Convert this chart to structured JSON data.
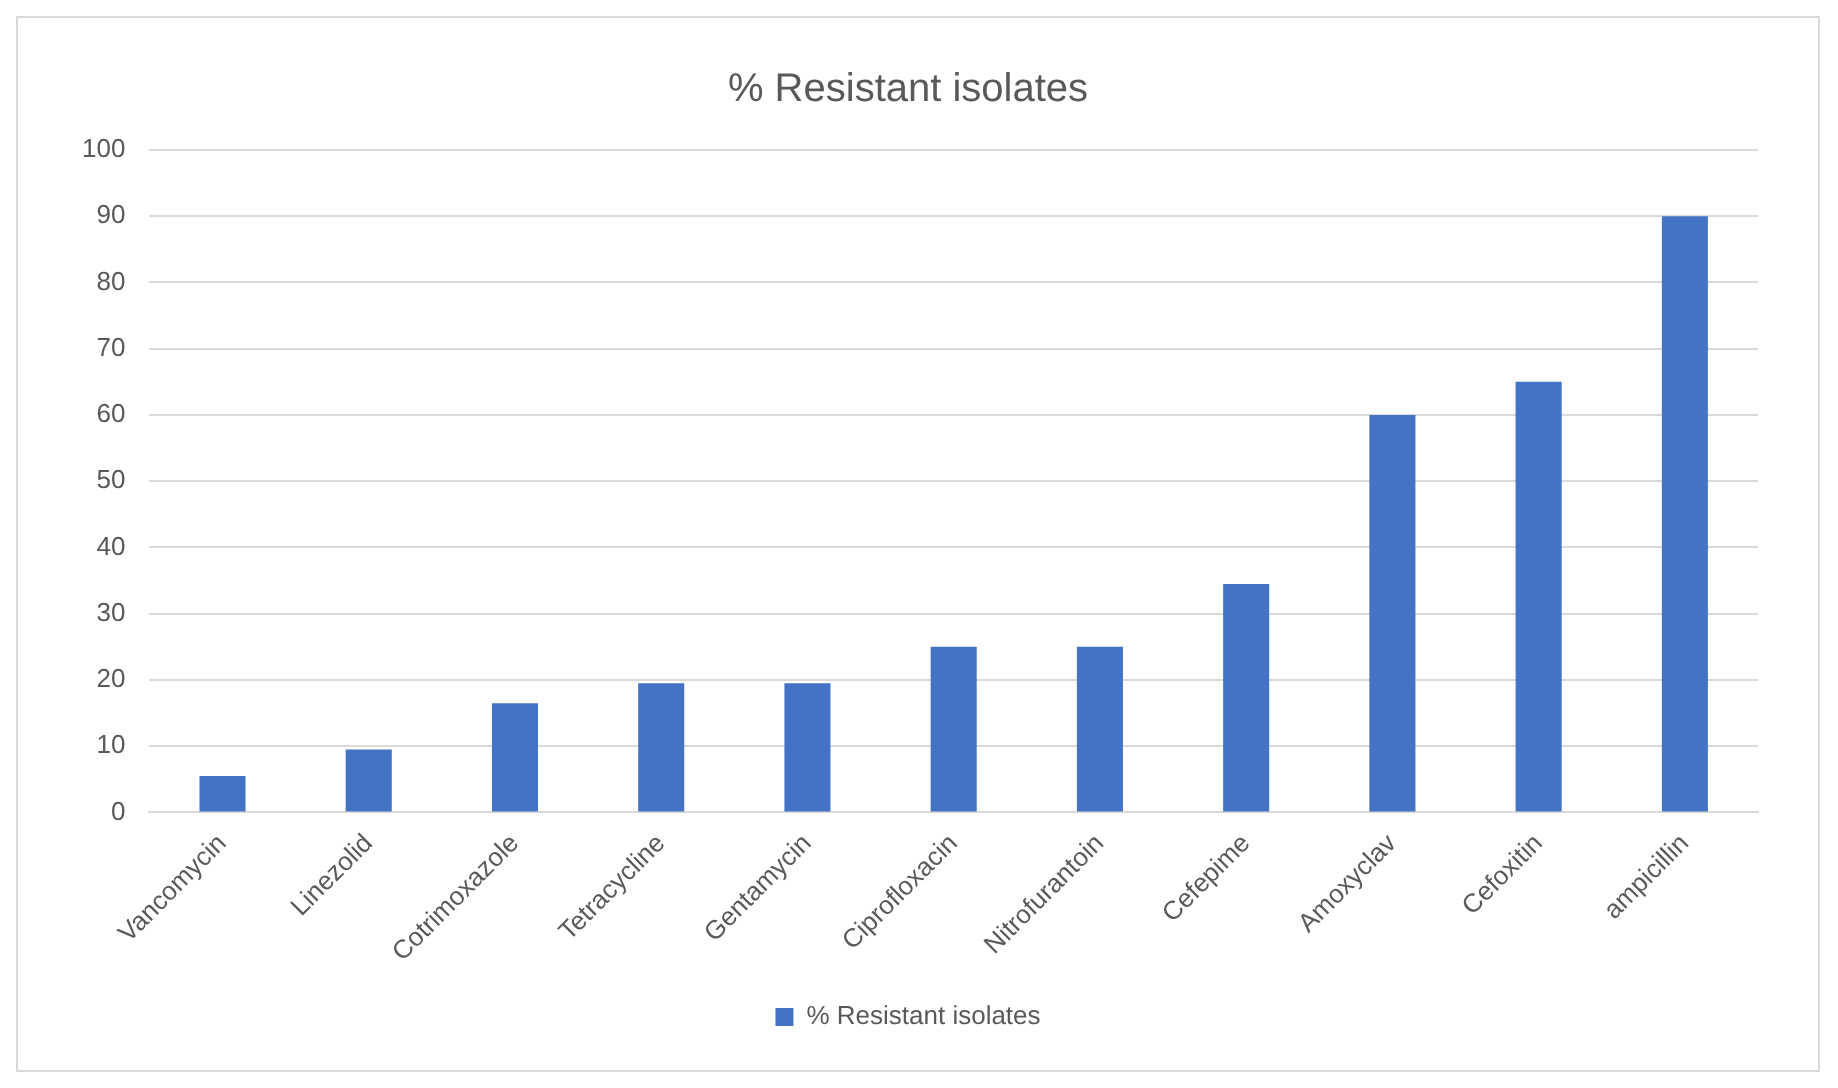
{
  "chart_data": {
    "type": "bar",
    "title": "% Resistant isolates",
    "categories": [
      "Vancomycin",
      "Linezolid",
      "Cotrimoxazole",
      "Tetracycline",
      "Gentamycin",
      "Ciprofloxacin",
      "Nitrofurantoin",
      "Cefepime",
      "Amoxyclav",
      "Cefoxitin",
      "ampicillin"
    ],
    "series": [
      {
        "name": "% Resistant isolates",
        "color": "#4472c4",
        "values": [
          5.5,
          9.5,
          16.5,
          19.5,
          19.5,
          25,
          25,
          34.5,
          60,
          65,
          90
        ]
      }
    ],
    "ylim": [
      0,
      100
    ],
    "yticks": [
      0,
      10,
      20,
      30,
      40,
      50,
      60,
      70,
      80,
      90,
      100
    ],
    "grid": "y",
    "legend": "bottom"
  }
}
